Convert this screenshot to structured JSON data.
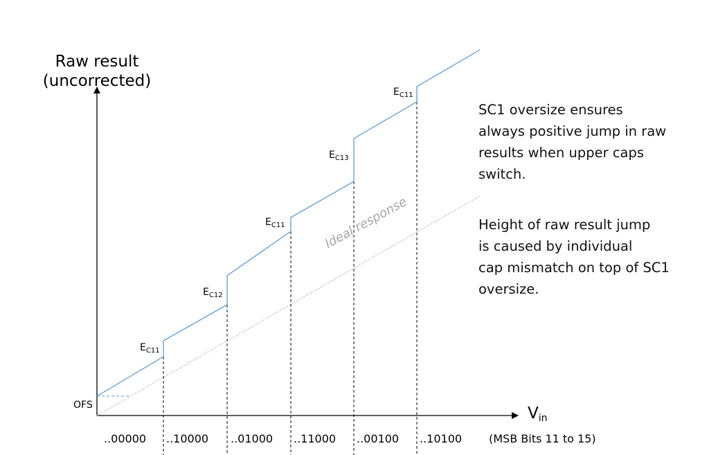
{
  "y_axis_title": [
    "Raw result",
    "(uncorrected)"
  ],
  "x_axis_label": {
    "main": "V",
    "sub": "in"
  },
  "x_axis_note": "(MSB Bits 11 to 15)",
  "offset_label": "OFS",
  "segment_codes": [
    "..00000",
    "..10000",
    "..01000",
    "..11000",
    "..00100",
    "..10100"
  ],
  "jump_labels": [
    {
      "main": "E",
      "sub": "C11"
    },
    {
      "main": "E",
      "sub": "C12"
    },
    {
      "main": "E",
      "sub": "C11"
    },
    {
      "main": "E",
      "sub": "C13"
    },
    {
      "main": "E",
      "sub": "C11"
    }
  ],
  "ideal_label": "Ideal response",
  "notes": {
    "oversize": [
      "SC1 oversize ensures",
      "always positive jump in raw",
      "results when upper caps",
      "switch."
    ],
    "height": [
      "Height of raw result jump",
      "is caused by individual",
      "cap mismatch on top of SC1",
      "oversize."
    ]
  },
  "colors": {
    "response": "#5b9bd5",
    "ideal": "#b8b8b8",
    "axis": "#000000",
    "guide": "#000000"
  }
}
